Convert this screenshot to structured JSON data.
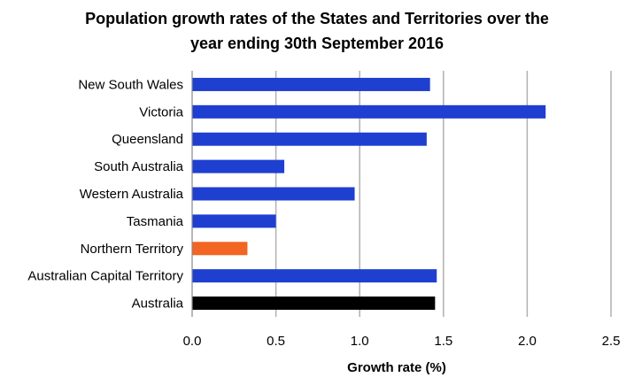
{
  "chart_data": {
    "type": "bar",
    "orientation": "horizontal",
    "title_lines": [
      "Population growth rates of the States and Territories over the",
      "year ending 30th September 2016"
    ],
    "categories": [
      "New South Wales",
      "Victoria",
      "Queensland",
      "South Australia",
      "Western Australia",
      "Tasmania",
      "Northern Territory",
      "Australian Capital Territory",
      "Australia"
    ],
    "values": [
      1.42,
      2.11,
      1.4,
      0.55,
      0.97,
      0.5,
      0.33,
      1.46,
      1.45
    ],
    "colors": [
      "#1f3fd1",
      "#1f3fd1",
      "#1f3fd1",
      "#1f3fd1",
      "#1f3fd1",
      "#1f3fd1",
      "#f26522",
      "#1f3fd1",
      "#000000"
    ],
    "xlabel": "Growth rate (%)",
    "ylabel": "",
    "xlim": [
      0,
      2.5
    ],
    "xticks": [
      "0.0",
      "0.5",
      "1.0",
      "1.5",
      "2.0",
      "2.5"
    ],
    "xtick_values": [
      0,
      0.5,
      1.0,
      1.5,
      2.0,
      2.5
    ],
    "grid": true,
    "legend": "none"
  }
}
